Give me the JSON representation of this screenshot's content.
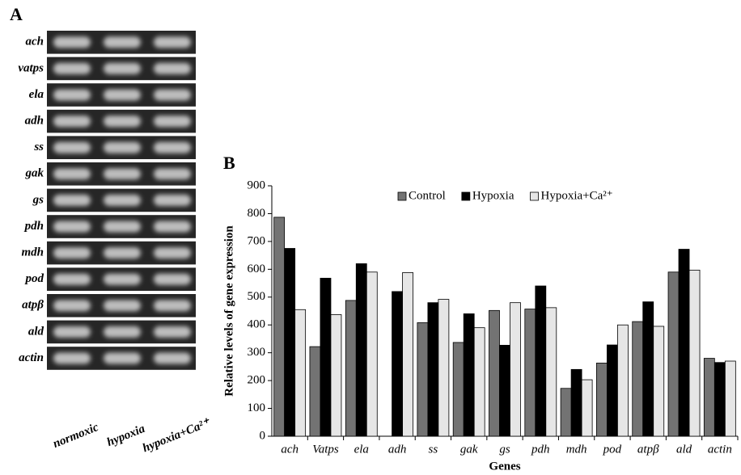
{
  "panel_a": {
    "label": "A",
    "genes": [
      "ach",
      "vatps",
      "ela",
      "adh",
      "ss",
      "gak",
      "gs",
      "pdh",
      "mdh",
      "pod",
      "atpβ",
      "ald",
      "actin"
    ],
    "lanes": [
      "normoxic",
      "hypoxia",
      "hypoxia+Ca²⁺"
    ]
  },
  "chart_data": {
    "type": "bar",
    "panel_label": "B",
    "x_label": "Genes",
    "y_label": "Relative levels of gene expression",
    "categories": [
      "ach",
      "Vatps",
      "ela",
      "adh",
      "ss",
      "gak",
      "gs",
      "pdh",
      "mdh",
      "pod",
      "atpβ",
      "ald",
      "actin"
    ],
    "series": [
      {
        "name": "Control",
        "color": "#737373",
        "values": [
          787,
          322,
          488,
          null,
          408,
          337,
          452,
          457,
          172,
          263,
          412,
          590,
          280
        ]
      },
      {
        "name": "Hypoxia",
        "color": "#000000",
        "values": [
          675,
          568,
          620,
          520,
          480,
          440,
          327,
          540,
          240,
          328,
          483,
          672,
          265
        ]
      },
      {
        "name": "Hypoxia+Ca²⁺",
        "color": "#e6e6e6",
        "values": [
          455,
          437,
          590,
          588,
          492,
          390,
          480,
          462,
          203,
          400,
          395,
          597,
          270
        ]
      }
    ],
    "ylim": [
      0,
      900
    ],
    "yticks": [
      0,
      100,
      200,
      300,
      400,
      500,
      600,
      700,
      800,
      900
    ],
    "legend": "top",
    "grid": false
  }
}
